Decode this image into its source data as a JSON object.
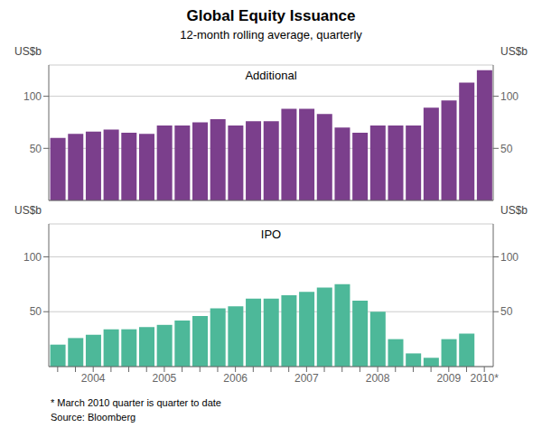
{
  "chart_data": [
    {
      "type": "bar",
      "title": "Global Equity Issuance",
      "subtitle": "12-month rolling average, quarterly",
      "annotations": [
        "Additional"
      ],
      "ylabel": "US$b",
      "y2label": "US$b",
      "categories": [
        null,
        null,
        "2004",
        null,
        null,
        null,
        "2005",
        null,
        null,
        null,
        "2006",
        null,
        null,
        null,
        "2007",
        null,
        null,
        null,
        "2008",
        null,
        null,
        null,
        "2009",
        null,
        "2010*"
      ],
      "values": [
        60,
        64,
        66,
        68,
        65,
        64,
        72,
        72,
        75,
        78,
        72,
        76,
        76,
        88,
        88,
        83,
        70,
        65,
        72,
        72,
        72,
        89,
        96,
        113,
        125
      ],
      "color": "#7B3F8C",
      "ylim": [
        0,
        130
      ],
      "yticks": [
        50,
        100
      ],
      "y2lim": [
        0,
        130
      ],
      "y2ticks": [
        50,
        100
      ],
      "grid": true,
      "tick_labels": "y"
    },
    {
      "type": "bar",
      "annotations": [
        "IPO",
        "* March 2010 quarter is quarter to date",
        "Source: Bloomberg"
      ],
      "ylabel": "US$b",
      "y2label": "US$b",
      "categories": [
        null,
        null,
        "2004",
        null,
        null,
        null,
        "2005",
        null,
        null,
        null,
        "2006",
        null,
        null,
        null,
        "2007",
        null,
        null,
        null,
        "2008",
        null,
        null,
        null,
        "2009",
        null,
        "2010*"
      ],
      "values": [
        20,
        26,
        29,
        34,
        34,
        36,
        38,
        42,
        46,
        53,
        55,
        62,
        62,
        65,
        68,
        72,
        75,
        60,
        50,
        25,
        12,
        8,
        25,
        30,
        null
      ],
      "color": "#4DB899",
      "ylim": [
        0,
        130
      ],
      "yticks": [
        50,
        100
      ],
      "y2lim": [
        0,
        130
      ],
      "y2ticks": [
        50,
        100
      ],
      "grid": true
    }
  ]
}
